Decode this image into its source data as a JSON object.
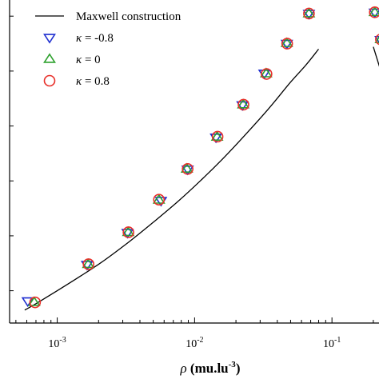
{
  "chart_data": {
    "type": "scatter",
    "title": "",
    "xlabel": "ρ (mu.lu⁻³)",
    "xlabel_parts": {
      "symbol": "ρ",
      "unit_open": "(mu.lu",
      "unit_exp": "-3",
      "unit_close": ")"
    },
    "ylabel": "",
    "xscale": "log",
    "xlim": [
      0.00045,
      0.22
    ],
    "ylim": [
      0,
      1
    ],
    "x_ticks": [
      {
        "value": 0.001,
        "base": "10",
        "exp": "-3"
      },
      {
        "value": 0.01,
        "base": "10",
        "exp": "-2"
      },
      {
        "value": 0.1,
        "base": "10",
        "exp": "-1"
      }
    ],
    "grid": false,
    "legend_position": "top-left",
    "curve": {
      "name": "Maxwell construction",
      "color": "#000000",
      "left_branch": {
        "x": [
          0.00058,
          0.0007,
          0.001,
          0.0015,
          0.0022,
          0.0033,
          0.005,
          0.0075,
          0.011,
          0.016,
          0.024,
          0.035,
          0.05,
          0.065,
          0.08
        ],
        "y": [
          0.04,
          0.06,
          0.1,
          0.147,
          0.194,
          0.25,
          0.312,
          0.375,
          0.44,
          0.508,
          0.588,
          0.666,
          0.746,
          0.8,
          0.848
        ]
      },
      "right_branch": {
        "x": [
          0.2,
          0.225
        ],
        "y": [
          0.855,
          0.785
        ]
      }
    },
    "series": [
      {
        "name": "κ = -0.8",
        "label_lhs": "κ",
        "label_rhs": "= -0.8",
        "marker": "triangle-down",
        "color": "#1f2fd0",
        "x": [
          0.00061,
          0.00165,
          0.00325,
          0.0057,
          0.0089,
          0.0143,
          0.0223,
          0.0322,
          0.047,
          0.068,
          0.205,
          0.226
        ],
        "y": [
          0.068,
          0.181,
          0.28,
          0.379,
          0.476,
          0.575,
          0.675,
          0.773,
          0.865,
          0.958,
          0.962,
          0.877
        ]
      },
      {
        "name": "κ = 0",
        "label_lhs": "κ",
        "label_rhs": "= 0",
        "marker": "triangle-up",
        "color": "#2ca02c",
        "x": [
          0.00068,
          0.00168,
          0.00329,
          0.0055,
          0.0088,
          0.0146,
          0.0226,
          0.0332,
          0.047,
          0.068,
          0.205,
          0.227
        ],
        "y": [
          0.064,
          0.182,
          0.281,
          0.381,
          0.477,
          0.576,
          0.676,
          0.772,
          0.866,
          0.958,
          0.962,
          0.878
        ]
      },
      {
        "name": "κ = 0.8",
        "label_lhs": "κ",
        "label_rhs": "= 0.8",
        "marker": "circle",
        "color": "#e8302a",
        "x": [
          0.00069,
          0.00169,
          0.0033,
          0.0055,
          0.0089,
          0.0147,
          0.0227,
          0.0334,
          0.0472,
          0.068,
          0.205,
          0.227
        ],
        "y": [
          0.064,
          0.182,
          0.281,
          0.382,
          0.477,
          0.577,
          0.676,
          0.771,
          0.865,
          0.958,
          0.962,
          0.878
        ]
      }
    ]
  }
}
